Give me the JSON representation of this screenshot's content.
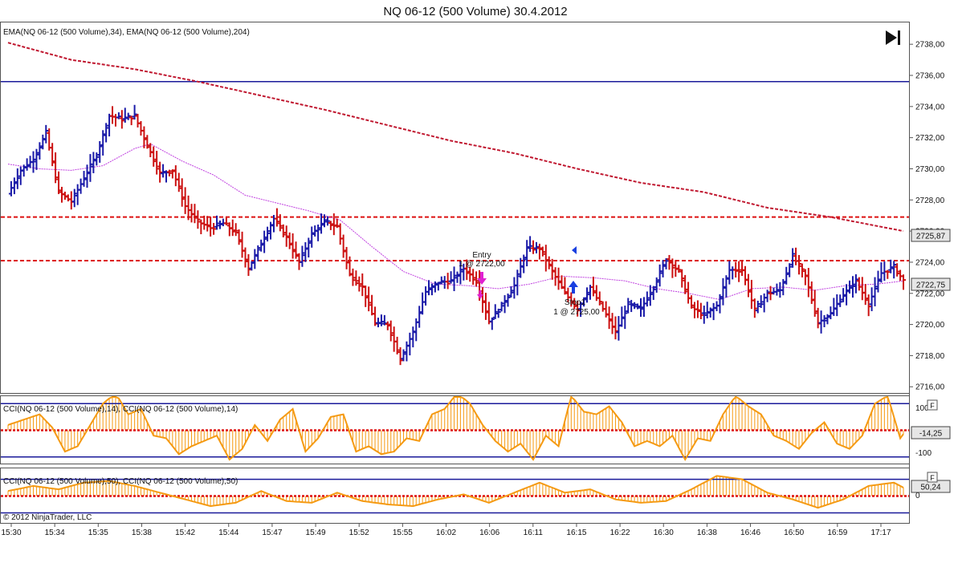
{
  "window_title": "NQ 06-12 (500 Volume)  30.4.2012",
  "price_panel": {
    "indicator_label": "EMA(NQ 06-12 (500 Volume),34), EMA(NQ 06-12 (500 Volume),204)",
    "price_ticks": [
      "2738,00",
      "2736,00",
      "2734,00",
      "2732,00",
      "2730,00",
      "2728,00",
      "2726,00",
      "2724,00",
      "2722,00",
      "2720,00",
      "2718,00",
      "2716,00"
    ],
    "ema204_badge": "2725,87",
    "last_price_badge": "2722,75",
    "entry_label": "Entry",
    "entry_detail": "1 @ 2722,00",
    "stop_label": "Stop1",
    "stop_detail": "1 @ 2725,00",
    "colors": {
      "up_bar": "#1a1aa8",
      "down_bar": "#cc1111",
      "ema34": "#c040e0",
      "ema204": "#c01830",
      "hline_blue": "#1a1a9a",
      "hline_red": "#dd1111"
    }
  },
  "cci14_panel": {
    "label": "CCI(NQ 06-12 (500 Volume),14), CCI(NQ 06-12 (500 Volume),14)",
    "ticks": [
      "100",
      "-100"
    ],
    "value_badge": "-14,25",
    "collapse_glyph": "F",
    "color": "#f59a12"
  },
  "cci50_panel": {
    "label": "CCI(NQ 06-12 (500 Volume),50), CCI(NQ 06-12 (500 Volume),50)",
    "ticks": [
      "0"
    ],
    "value_badge": "50,24",
    "collapse_glyph": "F",
    "copyright": "© 2012 NinjaTrader, LLC",
    "color": "#f59a12"
  },
  "time_axis": {
    "labels": [
      "15:30",
      "15:34",
      "15:35",
      "15:38",
      "15:42",
      "15:44",
      "15:47",
      "15:49",
      "15:52",
      "15:55",
      "16:02",
      "16:06",
      "16:11",
      "16:15",
      "16:22",
      "16:30",
      "16:38",
      "16:46",
      "16:50",
      "16:59",
      "17:17"
    ]
  },
  "toolbar": {
    "scroll_end_icon": "skip-to-end-icon"
  },
  "chart_data": {
    "type": "ohlc",
    "title": "NQ 06-12 (500 Volume)  30.4.2012",
    "ylim": [
      2715.6,
      2739.4
    ],
    "horizontal_lines": [
      {
        "price": 2735.6,
        "style": "solid",
        "color": "#1a1a9a"
      },
      {
        "price": 2726.9,
        "style": "dashed",
        "color": "#dd1111"
      },
      {
        "price": 2724.1,
        "style": "dashed",
        "color": "#dd1111"
      }
    ],
    "close_path": [
      [
        0,
        2728.4
      ],
      [
        4,
        2729.9
      ],
      [
        8,
        2730.6
      ],
      [
        12,
        2732.3
      ],
      [
        16,
        2728.5
      ],
      [
        20,
        2727.9
      ],
      [
        24,
        2729.4
      ],
      [
        28,
        2730.9
      ],
      [
        32,
        2733.4
      ],
      [
        36,
        2733.2
      ],
      [
        40,
        2733.4
      ],
      [
        44,
        2731.5
      ],
      [
        48,
        2729.7
      ],
      [
        52,
        2729.9
      ],
      [
        56,
        2727.6
      ],
      [
        60,
        2726.6
      ],
      [
        64,
        2726.2
      ],
      [
        68,
        2726.5
      ],
      [
        72,
        2725.9
      ],
      [
        76,
        2723.6
      ],
      [
        80,
        2725.2
      ],
      [
        84,
        2726.8
      ],
      [
        88,
        2725.6
      ],
      [
        92,
        2724.0
      ],
      [
        96,
        2725.8
      ],
      [
        100,
        2726.6
      ],
      [
        104,
        2726.3
      ],
      [
        108,
        2723.2
      ],
      [
        112,
        2722.4
      ],
      [
        116,
        2720.1
      ],
      [
        120,
        2720.0
      ],
      [
        124,
        2717.8
      ],
      [
        128,
        2719.5
      ],
      [
        132,
        2722.1
      ],
      [
        136,
        2722.7
      ],
      [
        140,
        2722.8
      ],
      [
        144,
        2723.6
      ],
      [
        148,
        2722.8
      ],
      [
        152,
        2720.2
      ],
      [
        156,
        2721.2
      ],
      [
        160,
        2722.5
      ],
      [
        164,
        2724.9
      ],
      [
        168,
        2724.9
      ],
      [
        172,
        2723.4
      ],
      [
        176,
        2722.0
      ],
      [
        180,
        2721.0
      ],
      [
        184,
        2722.4
      ],
      [
        188,
        2721.0
      ],
      [
        192,
        2719.5
      ],
      [
        196,
        2721.3
      ],
      [
        200,
        2721.0
      ],
      [
        204,
        2722.4
      ],
      [
        208,
        2724.2
      ],
      [
        212,
        2723.4
      ],
      [
        216,
        2721.1
      ],
      [
        220,
        2720.6
      ],
      [
        224,
        2721.2
      ],
      [
        228,
        2723.5
      ],
      [
        232,
        2723.5
      ],
      [
        236,
        2720.9
      ],
      [
        240,
        2722.0
      ],
      [
        244,
        2722.2
      ],
      [
        248,
        2724.4
      ],
      [
        252,
        2723.1
      ],
      [
        256,
        2720.1
      ],
      [
        260,
        2720.7
      ],
      [
        264,
        2721.9
      ],
      [
        268,
        2722.8
      ],
      [
        272,
        2721.3
      ],
      [
        276,
        2723.3
      ],
      [
        280,
        2723.7
      ],
      [
        283,
        2722.8
      ]
    ],
    "ema34_path": [
      [
        0,
        2730.3
      ],
      [
        10,
        2730.0
      ],
      [
        20,
        2729.9
      ],
      [
        30,
        2730.2
      ],
      [
        40,
        2731.3
      ],
      [
        45,
        2731.6
      ],
      [
        55,
        2730.5
      ],
      [
        65,
        2729.6
      ],
      [
        75,
        2728.3
      ],
      [
        85,
        2727.8
      ],
      [
        95,
        2727.3
      ],
      [
        105,
        2726.7
      ],
      [
        115,
        2725.0
      ],
      [
        125,
        2723.4
      ],
      [
        135,
        2722.6
      ],
      [
        145,
        2722.5
      ],
      [
        155,
        2722.3
      ],
      [
        165,
        2722.6
      ],
      [
        175,
        2723.1
      ],
      [
        185,
        2723.0
      ],
      [
        195,
        2722.8
      ],
      [
        205,
        2722.3
      ],
      [
        215,
        2722.0
      ],
      [
        225,
        2721.6
      ],
      [
        235,
        2722.3
      ],
      [
        245,
        2722.4
      ],
      [
        255,
        2722.2
      ],
      [
        265,
        2722.5
      ],
      [
        275,
        2722.6
      ],
      [
        283,
        2722.8
      ]
    ],
    "ema204_path": [
      [
        0,
        2738.1
      ],
      [
        20,
        2737.0
      ],
      [
        40,
        2736.4
      ],
      [
        60,
        2735.6
      ],
      [
        80,
        2734.7
      ],
      [
        100,
        2733.8
      ],
      [
        120,
        2732.8
      ],
      [
        140,
        2731.8
      ],
      [
        160,
        2731.0
      ],
      [
        180,
        2730.0
      ],
      [
        200,
        2729.1
      ],
      [
        220,
        2728.5
      ],
      [
        240,
        2727.5
      ],
      [
        260,
        2726.9
      ],
      [
        283,
        2726.0
      ]
    ],
    "cci14_path": [
      [
        0,
        20
      ],
      [
        5,
        40
      ],
      [
        10,
        60
      ],
      [
        14,
        10
      ],
      [
        18,
        -80
      ],
      [
        22,
        -60
      ],
      [
        26,
        20
      ],
      [
        30,
        100
      ],
      [
        34,
        140
      ],
      [
        38,
        60
      ],
      [
        42,
        80
      ],
      [
        46,
        -20
      ],
      [
        50,
        -30
      ],
      [
        54,
        -90
      ],
      [
        58,
        -60
      ],
      [
        62,
        -40
      ],
      [
        66,
        -20
      ],
      [
        70,
        -110
      ],
      [
        74,
        -70
      ],
      [
        78,
        20
      ],
      [
        82,
        -40
      ],
      [
        86,
        40
      ],
      [
        90,
        80
      ],
      [
        94,
        -80
      ],
      [
        98,
        -30
      ],
      [
        102,
        50
      ],
      [
        106,
        60
      ],
      [
        110,
        -80
      ],
      [
        114,
        -60
      ],
      [
        118,
        -90
      ],
      [
        122,
        -80
      ],
      [
        126,
        -30
      ],
      [
        130,
        -40
      ],
      [
        134,
        60
      ],
      [
        138,
        80
      ],
      [
        142,
        140
      ],
      [
        146,
        100
      ],
      [
        150,
        20
      ],
      [
        154,
        -40
      ],
      [
        158,
        -80
      ],
      [
        162,
        -50
      ],
      [
        166,
        -110
      ],
      [
        170,
        -20
      ],
      [
        174,
        -60
      ],
      [
        178,
        130
      ],
      [
        182,
        70
      ],
      [
        186,
        60
      ],
      [
        190,
        90
      ],
      [
        194,
        30
      ],
      [
        198,
        -60
      ],
      [
        202,
        -40
      ],
      [
        206,
        -60
      ],
      [
        210,
        -20
      ],
      [
        214,
        -110
      ],
      [
        218,
        -30
      ],
      [
        222,
        -40
      ],
      [
        226,
        60
      ],
      [
        230,
        130
      ],
      [
        234,
        90
      ],
      [
        238,
        60
      ],
      [
        242,
        -20
      ],
      [
        246,
        -40
      ],
      [
        250,
        -70
      ],
      [
        254,
        -10
      ],
      [
        258,
        30
      ],
      [
        262,
        -50
      ],
      [
        266,
        -70
      ],
      [
        270,
        -20
      ],
      [
        274,
        100
      ],
      [
        278,
        130
      ],
      [
        282,
        -30
      ],
      [
        283,
        -14.25
      ]
    ],
    "cci50_path": [
      [
        0,
        30
      ],
      [
        8,
        60
      ],
      [
        16,
        40
      ],
      [
        24,
        80
      ],
      [
        32,
        90
      ],
      [
        40,
        60
      ],
      [
        48,
        20
      ],
      [
        56,
        -20
      ],
      [
        64,
        -60
      ],
      [
        72,
        -40
      ],
      [
        80,
        30
      ],
      [
        88,
        -30
      ],
      [
        96,
        -40
      ],
      [
        104,
        20
      ],
      [
        112,
        -30
      ],
      [
        120,
        -50
      ],
      [
        128,
        -60
      ],
      [
        136,
        -20
      ],
      [
        144,
        10
      ],
      [
        152,
        -40
      ],
      [
        160,
        20
      ],
      [
        168,
        80
      ],
      [
        176,
        20
      ],
      [
        184,
        40
      ],
      [
        192,
        -20
      ],
      [
        200,
        -40
      ],
      [
        208,
        -30
      ],
      [
        216,
        40
      ],
      [
        224,
        120
      ],
      [
        232,
        100
      ],
      [
        240,
        20
      ],
      [
        248,
        -20
      ],
      [
        256,
        -70
      ],
      [
        264,
        -20
      ],
      [
        272,
        60
      ],
      [
        280,
        80
      ],
      [
        283,
        50.24
      ]
    ]
  }
}
